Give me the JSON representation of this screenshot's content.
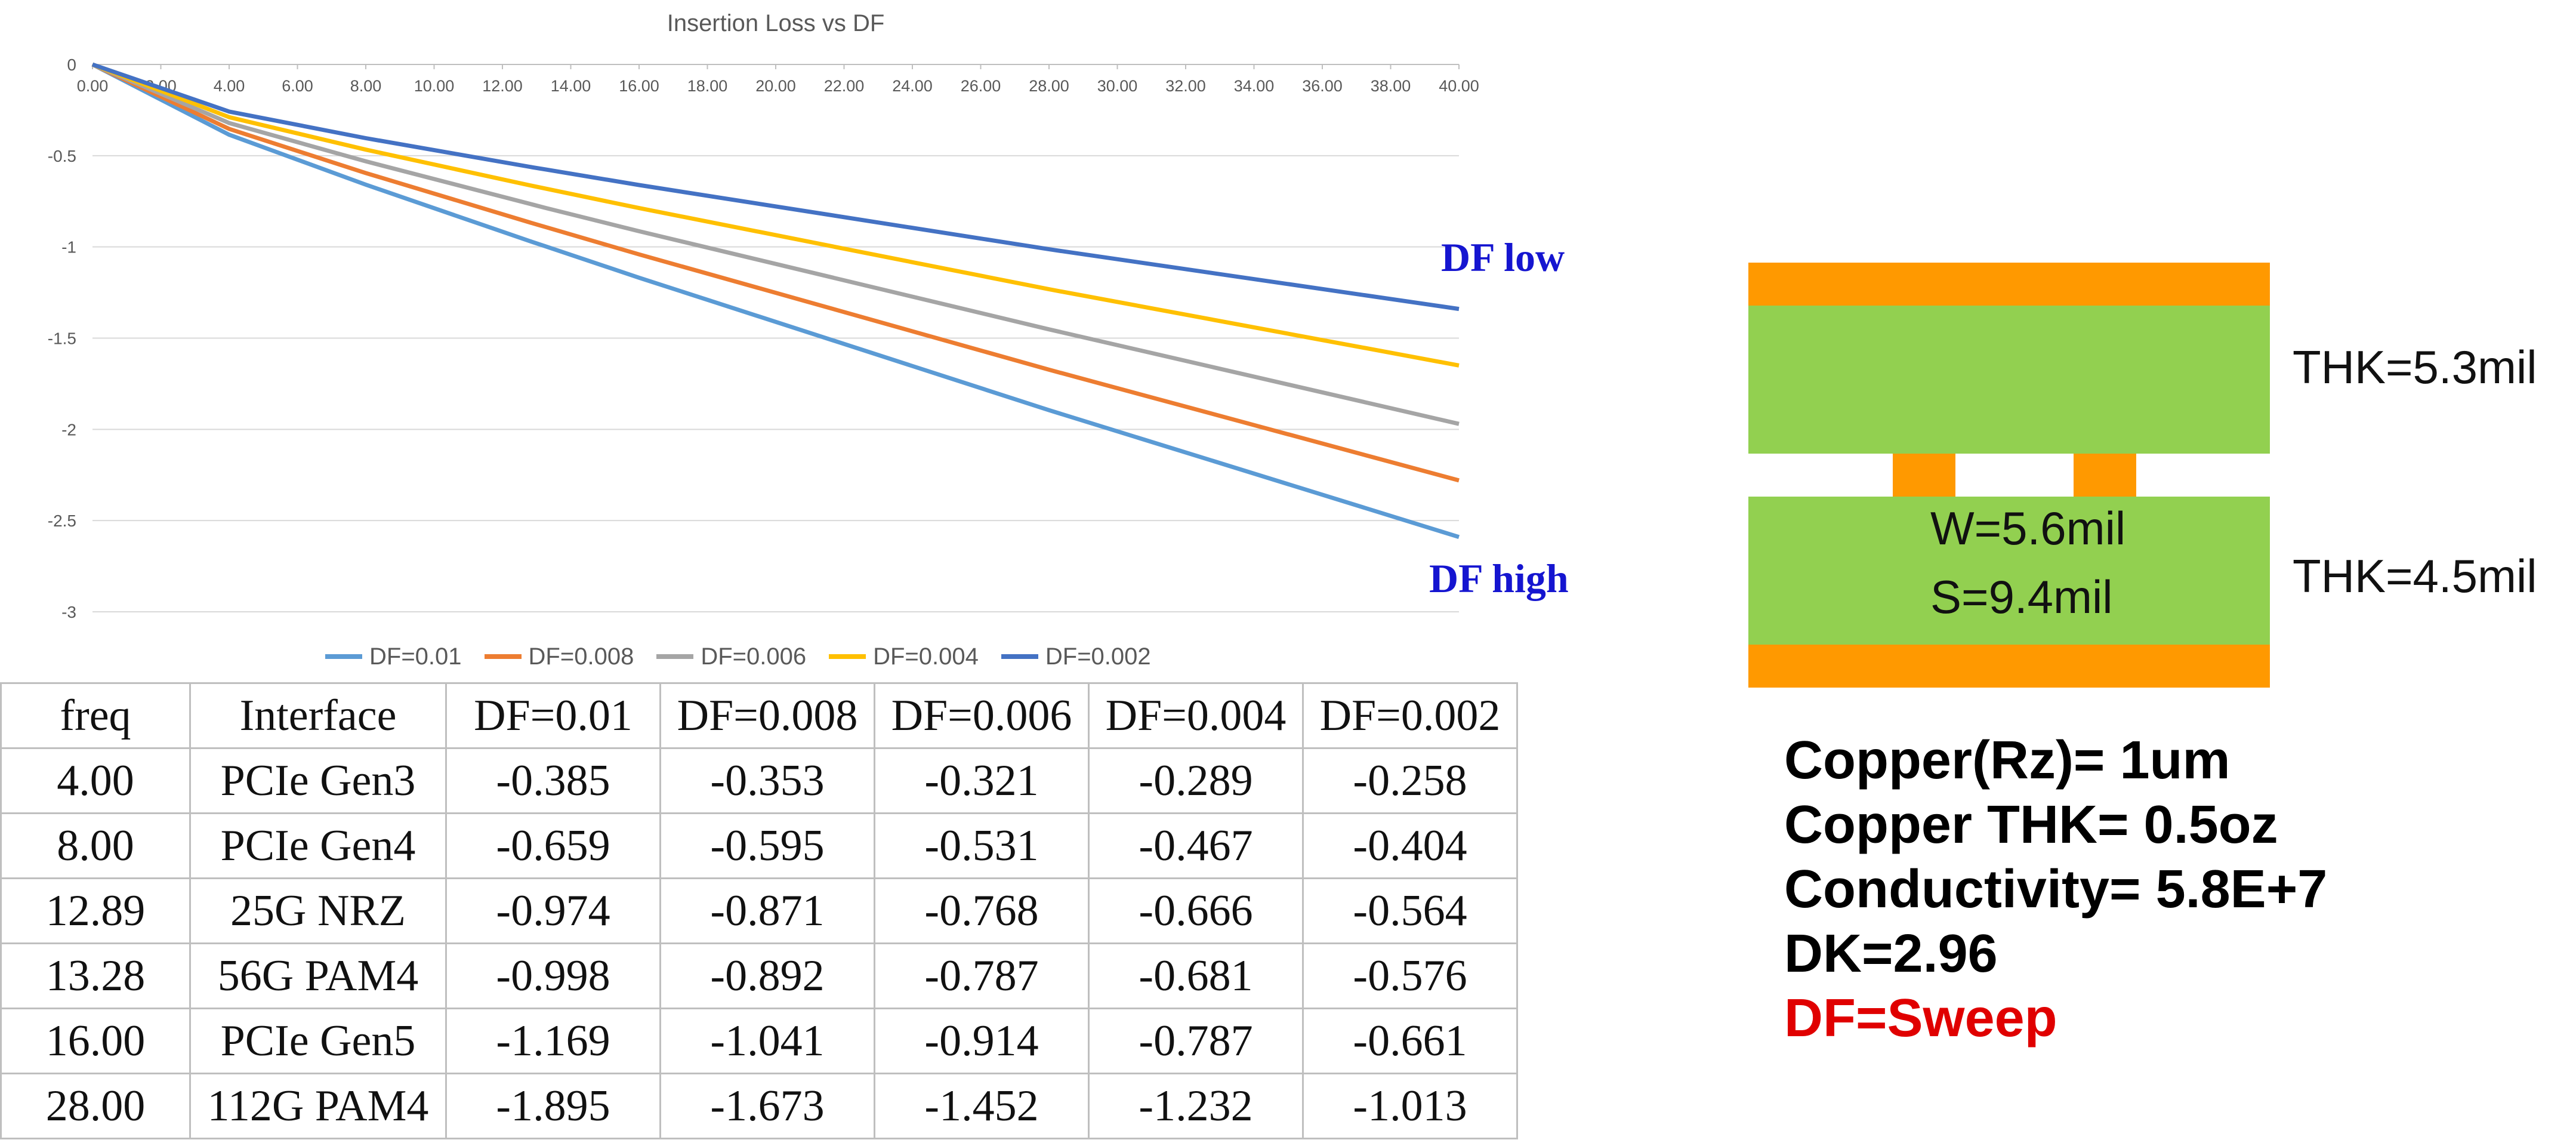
{
  "chart_data": {
    "type": "line",
    "title": "Insertion Loss vs DF",
    "xlabel": "",
    "ylabel": "",
    "xlim": [
      0,
      40
    ],
    "ylim": [
      -3,
      0
    ],
    "x_ticks": [
      "0.00",
      "2.00",
      "4.00",
      "6.00",
      "8.00",
      "10.00",
      "12.00",
      "14.00",
      "16.00",
      "18.00",
      "20.00",
      "22.00",
      "24.00",
      "26.00",
      "28.00",
      "30.00",
      "32.00",
      "34.00",
      "36.00",
      "38.00",
      "40.00"
    ],
    "y_ticks": [
      "0",
      "-0.5",
      "-1",
      "-1.5",
      "-2",
      "-2.5",
      "-3"
    ],
    "grid": "horizontal",
    "legend_position": "bottom",
    "x": [
      0,
      4,
      8,
      12.89,
      13.28,
      16,
      28,
      40
    ],
    "series": [
      {
        "name": "DF=0.01",
        "color": "#5b9bd5",
        "values": [
          0,
          -0.385,
          -0.659,
          -0.974,
          -0.998,
          -1.169,
          -1.895,
          -2.59
        ]
      },
      {
        "name": "DF=0.008",
        "color": "#ed7d31",
        "values": [
          0,
          -0.353,
          -0.595,
          -0.871,
          -0.892,
          -1.041,
          -1.673,
          -2.28
        ]
      },
      {
        "name": "DF=0.006",
        "color": "#a5a5a5",
        "values": [
          0,
          -0.321,
          -0.531,
          -0.768,
          -0.787,
          -0.914,
          -1.452,
          -1.97
        ]
      },
      {
        "name": "DF=0.004",
        "color": "#ffc000",
        "values": [
          0,
          -0.289,
          -0.467,
          -0.666,
          -0.681,
          -0.787,
          -1.232,
          -1.65
        ]
      },
      {
        "name": "DF=0.002",
        "color": "#4472c4",
        "values": [
          0,
          -0.258,
          -0.404,
          -0.564,
          -0.576,
          -0.661,
          -1.013,
          -1.34
        ]
      }
    ],
    "annotations": {
      "low": "DF low",
      "high": "DF high"
    }
  },
  "table": {
    "headers": [
      "freq",
      "Interface",
      "DF=0.01",
      "DF=0.008",
      "DF=0.006",
      "DF=0.004",
      "DF=0.002"
    ],
    "rows": [
      [
        "4.00",
        "PCIe Gen3",
        "-0.385",
        "-0.353",
        "-0.321",
        "-0.289",
        "-0.258"
      ],
      [
        "8.00",
        "PCIe Gen4",
        "-0.659",
        "-0.595",
        "-0.531",
        "-0.467",
        "-0.404"
      ],
      [
        "12.89",
        "25G NRZ",
        "-0.974",
        "-0.871",
        "-0.768",
        "-0.666",
        "-0.564"
      ],
      [
        "13.28",
        "56G PAM4",
        "-0.998",
        "-0.892",
        "-0.787",
        "-0.681",
        "-0.576"
      ],
      [
        "16.00",
        "PCIe Gen5",
        "-1.169",
        "-1.041",
        "-0.914",
        "-0.787",
        "-0.661"
      ],
      [
        "28.00",
        "112G PAM4",
        "-1.895",
        "-1.673",
        "-1.452",
        "-1.232",
        "-1.013"
      ]
    ]
  },
  "stackup": {
    "copper_color": "#ff9900",
    "dielectric_color": "#92d050",
    "top_label": "THK=5.3mil",
    "bottom_label": "THK=4.5mil",
    "width_label": "W=5.6mil",
    "spacing_label": "S=9.4mil"
  },
  "properties": {
    "rz": "Copper(Rz)= 1um",
    "thk": "Copper THK= 0.5oz",
    "conductivity": "Conductivity= 5.8E+7",
    "dk": "DK=2.96",
    "df": "DF=Sweep",
    "df_color": "#e00000"
  }
}
